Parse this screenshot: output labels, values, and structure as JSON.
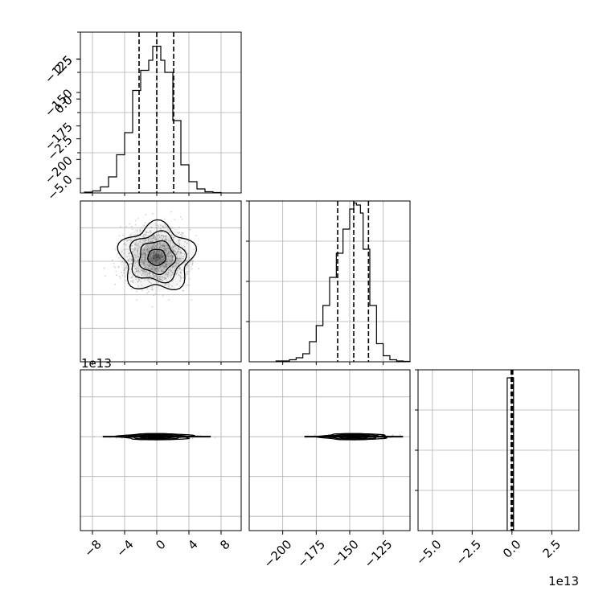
{
  "chart_data": {
    "type": "corner",
    "colors": {
      "ink": "#000000",
      "grid": "#b0b0b0",
      "scatter": "#808080"
    },
    "variables": [
      {
        "tick_labels": [
          "−8",
          "−4",
          "0",
          "4",
          "8"
        ],
        "ticks": [
          -8,
          -4,
          0,
          4,
          8
        ],
        "lim": [
          -9.5,
          10.5
        ]
      },
      {
        "tick_labels": [
          "−200",
          "−175",
          "−150",
          "−125"
        ],
        "ticks": [
          -200,
          -175,
          -150,
          -125
        ],
        "lim": [
          -225,
          -105
        ]
      },
      {
        "tick_labels": [
          "−5.0",
          "−2.5",
          "0.0",
          "2.5"
        ],
        "ticks": [
          -5,
          -2.5,
          0,
          2.5
        ],
        "lim": [
          -5.9,
          4.2
        ],
        "offset_text": "1e13"
      }
    ],
    "histograms": [
      {
        "variable": 0,
        "bin_edges": [
          -9.0,
          -8.0,
          -7.0,
          -6.0,
          -5.0,
          -4.0,
          -3.0,
          -2.0,
          -1.0,
          -0.5,
          0.0,
          0.5,
          1.0,
          2.0,
          3.0,
          4.0,
          5.0,
          6.0,
          7.0,
          8.0
        ],
        "counts": [
          2,
          5,
          15,
          40,
          95,
          150,
          255,
          305,
          330,
          365,
          365,
          330,
          300,
          180,
          70,
          28,
          10,
          3,
          1
        ],
        "ymax": 400,
        "quantiles": [
          -2.2,
          0.0,
          2.1
        ]
      },
      {
        "variable": 1,
        "bin_edges": [
          -205,
          -195,
          -190,
          -185,
          -180,
          -175,
          -170,
          -165,
          -160,
          -155,
          -150,
          -147,
          -145,
          -142,
          -140,
          -135,
          -130,
          -125,
          -120,
          -115,
          -110,
          -105
        ],
        "counts": [
          2,
          5,
          10,
          20,
          50,
          90,
          140,
          210,
          270,
          330,
          380,
          395,
          390,
          370,
          280,
          140,
          45,
          15,
          5,
          2,
          1
        ],
        "ymax": 400,
        "quantiles": [
          -159,
          -147,
          -136
        ]
      },
      {
        "variable": 2,
        "bin_edges": [
          -0.3,
          0.0,
          0.1
        ],
        "counts": [
          380,
          380
        ],
        "ymax": 400,
        "quantiles": [
          -0.05,
          0.0,
          0.05
        ]
      }
    ],
    "pairs": [
      {
        "x_variable": 0,
        "y_variable": 1,
        "center": [
          0,
          -147
        ],
        "sigma": [
          2.1,
          11.5
        ],
        "contour_levels_sigma": [
          0.5,
          1.0,
          1.5,
          2.0
        ]
      },
      {
        "x_variable": 0,
        "y_variable": 2,
        "center": [
          0,
          0
        ],
        "sigma": [
          2.1,
          0.04
        ],
        "contour_levels_sigma": [
          0.5,
          1.0,
          1.5,
          2.0
        ]
      },
      {
        "x_variable": 1,
        "y_variable": 2,
        "center": [
          -147,
          0
        ],
        "sigma": [
          11.5,
          0.04
        ],
        "contour_levels_sigma": [
          0.5,
          1.0,
          1.5,
          2.0
        ]
      }
    ]
  }
}
